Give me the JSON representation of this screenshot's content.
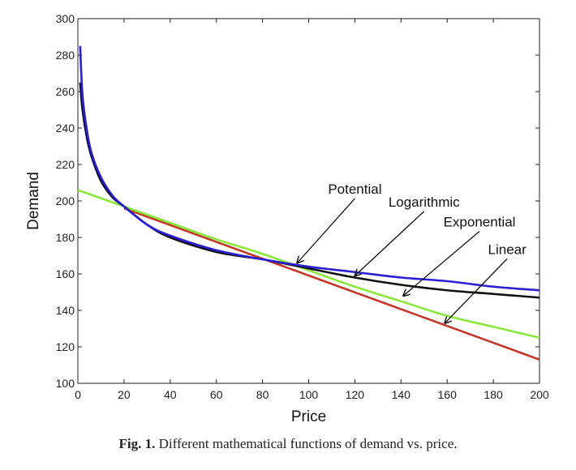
{
  "caption": {
    "label": "Fig. 1.",
    "text": "Different mathematical functions of demand vs. price."
  },
  "chart_data": {
    "type": "line",
    "title": "",
    "xlabel": "Price",
    "ylabel": "Demand",
    "xlim": [
      0,
      200
    ],
    "ylim": [
      100,
      300
    ],
    "xticks": [
      0,
      20,
      40,
      60,
      80,
      100,
      120,
      140,
      160,
      180,
      200
    ],
    "yticks": [
      100,
      120,
      140,
      160,
      180,
      200,
      220,
      240,
      260,
      280,
      300
    ],
    "grid": false,
    "legend": "none",
    "series": [
      {
        "name": "Potential",
        "color": "#2b1fd6",
        "x": [
          1,
          2,
          4,
          6,
          10,
          15,
          20,
          30,
          40,
          60,
          80,
          100,
          120,
          140,
          160,
          180,
          200
        ],
        "y": [
          285,
          258,
          238,
          226,
          213,
          203,
          197,
          187,
          181,
          173,
          168,
          164,
          161,
          158,
          156,
          153,
          151
        ]
      },
      {
        "name": "Logarithmic",
        "color": "#111111",
        "x": [
          1,
          2,
          4,
          6,
          10,
          15,
          20,
          30,
          40,
          60,
          80,
          100,
          120,
          140,
          160,
          180,
          200
        ],
        "y": [
          265,
          250,
          234,
          224,
          211,
          202,
          197,
          187,
          180,
          172,
          168,
          163,
          158,
          154,
          151,
          149,
          147
        ]
      },
      {
        "name": "Exponential",
        "color": "#8ce63c",
        "x": [
          0,
          20,
          40,
          60,
          80,
          100,
          120,
          140,
          160,
          180,
          200
        ],
        "y": [
          206,
          197,
          188,
          179,
          171,
          162,
          153,
          145,
          137,
          131,
          125
        ]
      },
      {
        "name": "Linear",
        "color": "#c0392b",
        "x": [
          20,
          200
        ],
        "y": [
          196,
          113
        ]
      }
    ],
    "annotations": [
      {
        "text": "Potential",
        "text_x": 120,
        "text_y": 204,
        "point_x": 95,
        "point_y": 166
      },
      {
        "text": "Logarithmic",
        "text_x": 150,
        "text_y": 197,
        "point_x": 120,
        "point_y": 159
      },
      {
        "text": "Exponential",
        "text_x": 174,
        "text_y": 186,
        "point_x": 141,
        "point_y": 148
      },
      {
        "text": "Linear",
        "text_x": 186,
        "text_y": 171,
        "point_x": 159,
        "point_y": 133
      }
    ]
  }
}
